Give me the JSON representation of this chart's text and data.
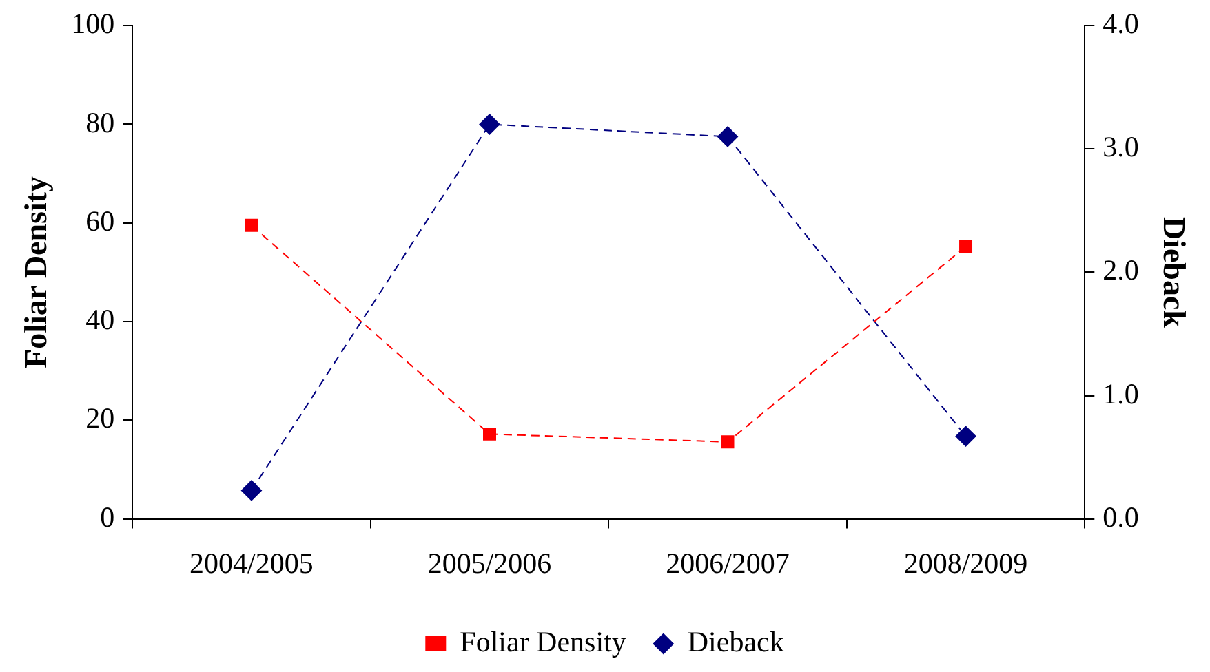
{
  "chart_data": {
    "type": "line",
    "ylabel": "Foliar Density",
    "y2label": "Dieback",
    "categories": [
      "2004/2005",
      "2005/2006",
      "2006/2007",
      "2008/2009"
    ],
    "series": [
      {
        "name": "Foliar Density",
        "color": "#ff0000",
        "marker": "square",
        "values": [
          59.5,
          17.2,
          15.6,
          55.2
        ]
      },
      {
        "name": "Dieback",
        "color": "#000080",
        "marker": "diamond",
        "axis": "y2",
        "values": [
          0.23,
          3.2,
          3.1,
          0.67
        ]
      }
    ],
    "ylim": [
      0,
      100
    ],
    "yticks": [
      0,
      20,
      40,
      60,
      80,
      100
    ],
    "y2lim": [
      0,
      4
    ],
    "y2ticks": [
      {
        "value": 0,
        "label": "0.0"
      },
      {
        "value": 1,
        "label": "1.0"
      },
      {
        "value": 2,
        "label": "2.0"
      },
      {
        "value": 3,
        "label": "3.0"
      },
      {
        "value": 4,
        "label": "4.0"
      }
    ],
    "grid": false,
    "legend": "bottom",
    "line_style": "dashed"
  }
}
